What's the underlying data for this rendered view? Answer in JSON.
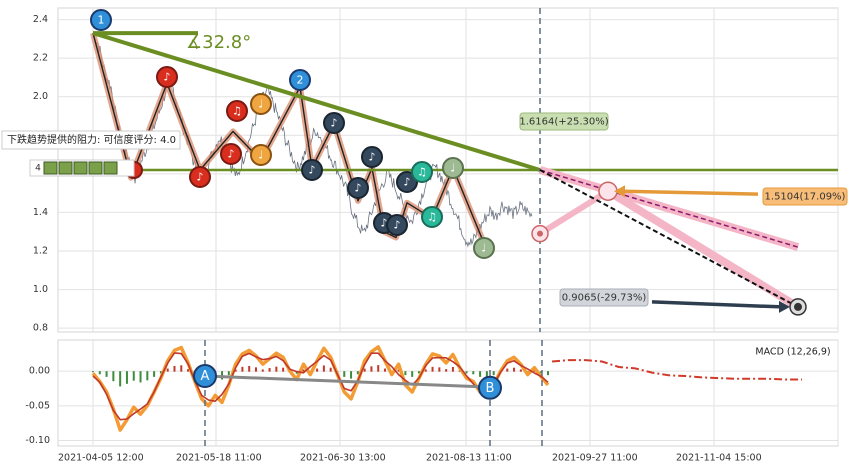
{
  "chart_data": [
    {
      "type": "line",
      "panel": "price",
      "ylim": [
        0.78,
        2.46
      ],
      "y_ticks": [
        0.8,
        1.0,
        1.2,
        1.4,
        1.6,
        1.8,
        2.0,
        2.2,
        2.4
      ],
      "y_tick_labels": [
        "0.8",
        "1.0",
        "1.2",
        "1.4",
        "",
        "",
        "2.0",
        "2.2",
        "2.4"
      ],
      "grid": true,
      "series": [
        {
          "values": [
            2.33,
            2.26,
            2.12,
            2.05,
            1.86,
            1.74,
            1.68,
            1.58,
            1.66,
            1.74,
            1.83,
            1.92,
            2.02,
            2.08,
            1.96,
            1.84,
            1.75,
            1.63,
            1.56,
            1.64,
            1.72,
            1.79,
            1.74,
            1.64,
            1.58,
            1.68,
            1.78,
            1.88,
            1.98,
            2.03,
            1.96,
            1.88,
            1.78,
            1.7,
            1.63,
            1.69,
            1.76,
            1.83,
            1.78,
            1.72,
            1.66,
            1.6,
            1.53,
            1.42,
            1.34,
            1.29,
            1.37,
            1.46,
            1.54,
            1.6,
            1.55,
            1.48,
            1.4,
            1.35,
            1.43,
            1.52,
            1.6,
            1.63,
            1.58,
            1.5,
            1.42,
            1.34,
            1.26,
            1.24,
            1.3,
            1.36,
            1.41,
            1.38,
            1.44,
            1.42,
            1.39,
            1.43,
            1.41,
            1.38
          ]
        }
      ],
      "markers": [
        {
          "label": "1",
          "style": "blue"
        },
        {
          "label": "2",
          "style": "blue"
        },
        {
          "label": "♪",
          "style": "red"
        },
        {
          "label": "♫",
          "style": "red"
        },
        {
          "label": "♩",
          "style": "orange"
        },
        {
          "label": "♪",
          "style": "dark"
        },
        {
          "label": "♫",
          "style": "teal"
        },
        {
          "label": "♩",
          "style": "sage"
        }
      ],
      "annotations": {
        "angle": "∡32.8°",
        "resistance_note": "下跌趋势提供的阻力: 可信度评分: 4.0",
        "target_up": "1.6164(+25.30%)",
        "target_mid": "1.5104(17.09%)",
        "target_down": "0.9065(-29.73%)"
      }
    },
    {
      "type": "line",
      "panel": "macd",
      "title": "MACD (12,26,9)",
      "ylim": [
        -0.108,
        0.045
      ],
      "y_ticks": [
        -0.1,
        -0.05,
        0.0
      ],
      "y_tick_labels": [
        "-0.10",
        "-0.05",
        "0.00"
      ],
      "x_tick_labels": [
        "2021-04-05 12:00",
        "2021-05-18 11:00",
        "2021-06-30 13:00",
        "2021-08-13 11:00",
        "2021-09-27 11:00",
        "2021-11-04 15:00"
      ],
      "series": [
        {
          "values": [
            -0.003,
            -0.015,
            -0.03,
            -0.055,
            -0.085,
            -0.07,
            -0.052,
            -0.062,
            -0.05,
            -0.03,
            -0.01,
            0.015,
            0.03,
            0.034,
            0.012,
            -0.015,
            -0.04,
            -0.05,
            -0.035,
            -0.045,
            -0.02,
            0.01,
            0.025,
            0.03,
            0.022,
            0.01,
            0.018,
            0.026,
            0.02,
            0.0,
            -0.012,
            0.01,
            -0.005,
            0.015,
            0.033,
            0.02,
            -0.005,
            -0.03,
            -0.04,
            -0.015,
            0.015,
            0.028,
            0.035,
            0.015,
            -0.005,
            0.01,
            -0.02,
            -0.03,
            -0.01,
            0.01,
            0.025,
            0.022,
            0.012,
            0.024,
            0.005,
            -0.01,
            -0.015,
            -0.03,
            -0.038,
            -0.02,
            0.0,
            0.015,
            0.02,
            0.01,
            -0.005,
            0.005,
            -0.008,
            -0.02
          ]
        },
        {
          "values": [
            0.014,
            0.016,
            0.016,
            0.014,
            0.006,
            0.004,
            -0.002,
            -0.006,
            -0.007,
            -0.009,
            -0.01,
            -0.011,
            -0.011,
            -0.011,
            -0.012,
            -0.012
          ]
        }
      ],
      "markers": [
        {
          "label": "A"
        },
        {
          "label": "B"
        }
      ]
    }
  ]
}
